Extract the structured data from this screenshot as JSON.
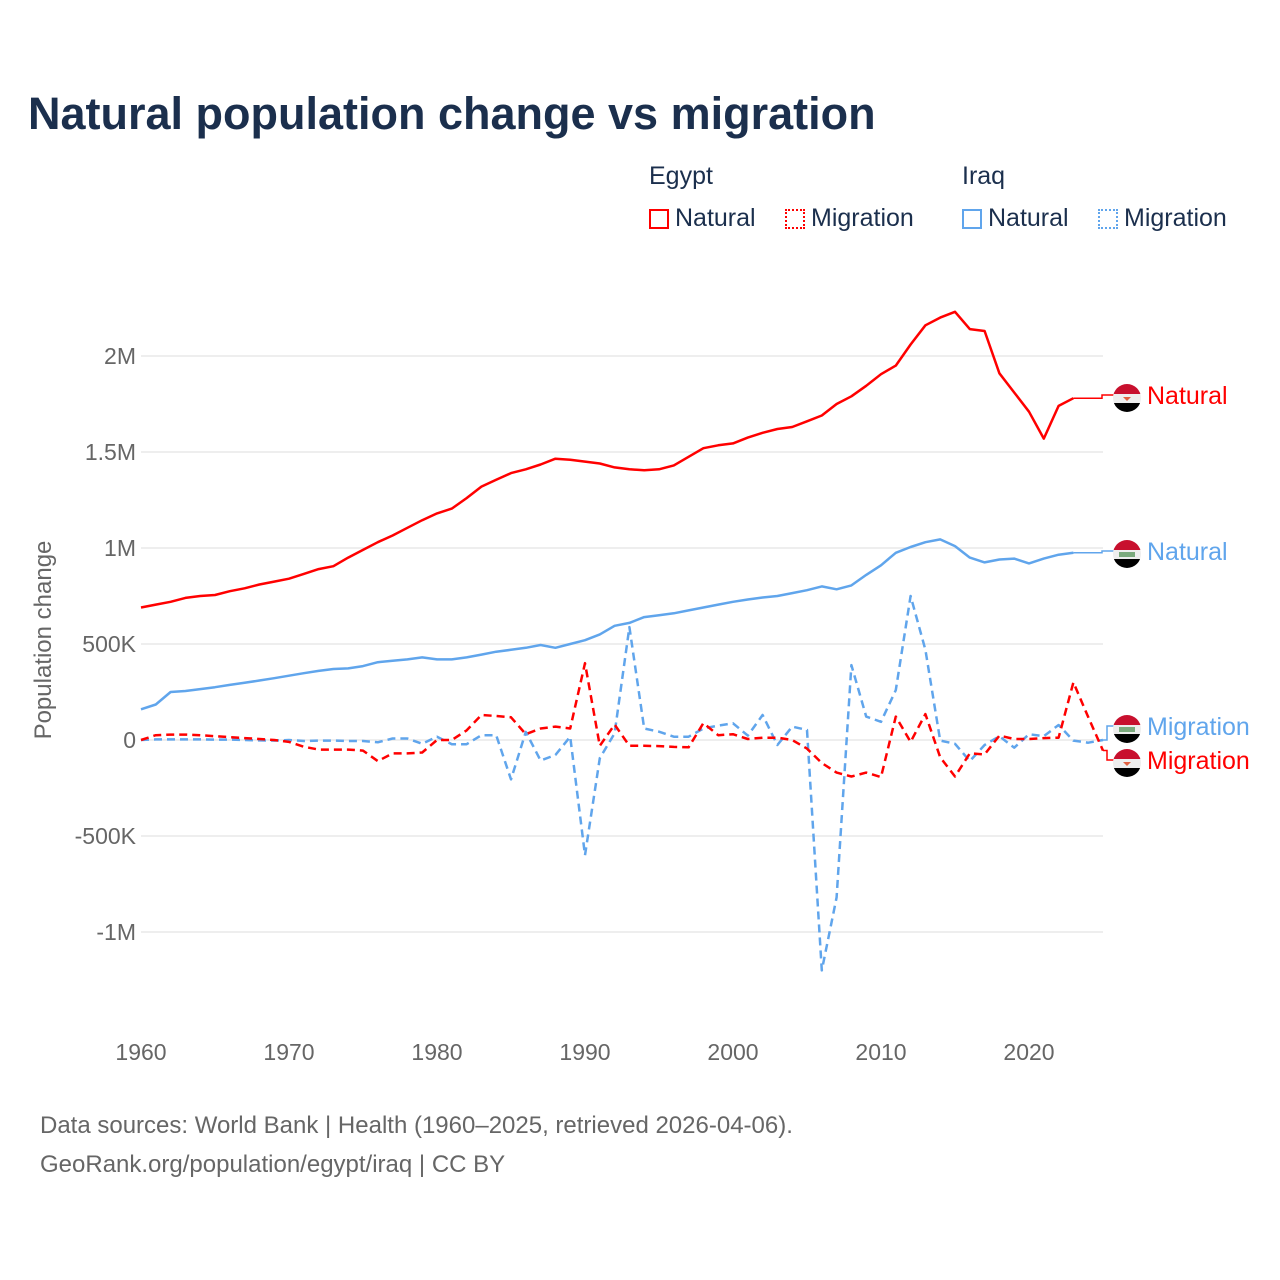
{
  "title": "Natural population change vs migration",
  "legend": {
    "groups": [
      {
        "name": "Egypt",
        "items": [
          {
            "label": "Natural",
            "style": "solid",
            "color": "#ff0000"
          },
          {
            "label": "Migration",
            "style": "dotted",
            "color": "#ff0000"
          }
        ]
      },
      {
        "name": "Iraq",
        "items": [
          {
            "label": "Natural",
            "style": "solid",
            "color": "#60a5ec"
          },
          {
            "label": "Migration",
            "style": "dotted",
            "color": "#60a5ec"
          }
        ]
      }
    ]
  },
  "footer": {
    "line1": "Data sources: World Bank | Health (1960–2025, retrieved 2026-04-06).",
    "line2": "GeoRank.org/population/egypt/iraq | CC BY"
  },
  "chart_data": {
    "type": "line",
    "title": "Natural population change vs migration",
    "xlabel": "",
    "ylabel": "Population change",
    "xlim": [
      1960,
      2025
    ],
    "ylim": [
      -1300000,
      2400000
    ],
    "grid": true,
    "legend_placement": "top-right",
    "x_ticks": [
      {
        "value": 1960,
        "label": "1960"
      },
      {
        "value": 1970,
        "label": "1970"
      },
      {
        "value": 1980,
        "label": "1980"
      },
      {
        "value": 1990,
        "label": "1990"
      },
      {
        "value": 2000,
        "label": "2000"
      },
      {
        "value": 2010,
        "label": "2010"
      },
      {
        "value": 2020,
        "label": "2020"
      }
    ],
    "y_ticks": [
      {
        "value": -1000000,
        "label": "-1M"
      },
      {
        "value": -500000,
        "label": "-500K"
      },
      {
        "value": 0,
        "label": "0"
      },
      {
        "value": 500000,
        "label": "500K"
      },
      {
        "value": 1000000,
        "label": "1M"
      },
      {
        "value": 1500000,
        "label": "1.5M"
      },
      {
        "value": 2000000,
        "label": "2M"
      }
    ],
    "series": [
      {
        "name": "Egypt Natural",
        "end_label": "Natural",
        "country": "egypt",
        "color": "#ff0000",
        "dashed": false,
        "start_year": 1960,
        "values_k": [
          690,
          705,
          720,
          740,
          750,
          755,
          775,
          790,
          810,
          825,
          840,
          865,
          890,
          905,
          950,
          990,
          1030,
          1065,
          1105,
          1145,
          1180,
          1205,
          1260,
          1320,
          1355,
          1390,
          1410,
          1435,
          1465,
          1460,
          1450,
          1440,
          1420,
          1410,
          1405,
          1410,
          1430,
          1475,
          1520,
          1535,
          1545,
          1575,
          1600,
          1620,
          1630,
          1660,
          1690,
          1750,
          1790,
          1845,
          1905,
          1950,
          2060,
          2160,
          2200,
          2230,
          2140,
          2130,
          1910,
          1810,
          1710,
          1570,
          1740,
          1780
        ]
      },
      {
        "name": "Iraq Natural",
        "end_label": "Natural",
        "country": "iraq",
        "color": "#60a5ec",
        "dashed": false,
        "start_year": 1960,
        "values_k": [
          160,
          185,
          250,
          255,
          265,
          275,
          287,
          298,
          310,
          322,
          335,
          348,
          360,
          370,
          373,
          385,
          405,
          413,
          420,
          430,
          420,
          420,
          430,
          445,
          460,
          470,
          480,
          495,
          480,
          500,
          520,
          550,
          595,
          610,
          640,
          650,
          660,
          675,
          690,
          705,
          720,
          732,
          742,
          750,
          765,
          780,
          800,
          785,
          805,
          860,
          910,
          975,
          1005,
          1030,
          1045,
          1010,
          950,
          925,
          940,
          945,
          920,
          945,
          965,
          975
        ]
      },
      {
        "name": "Iraq Migration",
        "end_label": "Migration",
        "country": "iraq",
        "color": "#60a5ec",
        "dashed": true,
        "start_year": 1960,
        "values_k": [
          0,
          3,
          3,
          3,
          3,
          2,
          2,
          0,
          -2,
          -3,
          0,
          -5,
          -3,
          -3,
          -5,
          -5,
          -12,
          8,
          8,
          -20,
          17,
          -22,
          -22,
          25,
          25,
          -205,
          42,
          -107,
          -78,
          17,
          -600,
          -95,
          35,
          588,
          60,
          43,
          17,
          17,
          60,
          75,
          87,
          23,
          130,
          -26,
          70,
          52,
          -1200,
          -820,
          390,
          122,
          95,
          260,
          750,
          470,
          -3,
          -20,
          -110,
          -26,
          20,
          -40,
          30,
          20,
          78,
          -3,
          -14,
          0
        ]
      },
      {
        "name": "Egypt Migration",
        "end_label": "Migration",
        "country": "egypt",
        "color": "#ff0000",
        "dashed": true,
        "start_year": 1960,
        "values_k": [
          0,
          25,
          28,
          28,
          25,
          20,
          15,
          10,
          5,
          0,
          -10,
          -35,
          -50,
          -50,
          -50,
          -55,
          -110,
          -70,
          -70,
          -65,
          0,
          0,
          50,
          130,
          125,
          118,
          30,
          60,
          70,
          60,
          400,
          -30,
          80,
          -30,
          -30,
          -32,
          -36,
          -38,
          88,
          25,
          30,
          5,
          12,
          12,
          0,
          -45,
          -120,
          -170,
          -190,
          -170,
          -193,
          122,
          -10,
          135,
          -90,
          -190,
          -70,
          -75,
          23,
          5,
          5,
          10,
          12,
          300,
          120,
          -55
        ]
      }
    ]
  }
}
